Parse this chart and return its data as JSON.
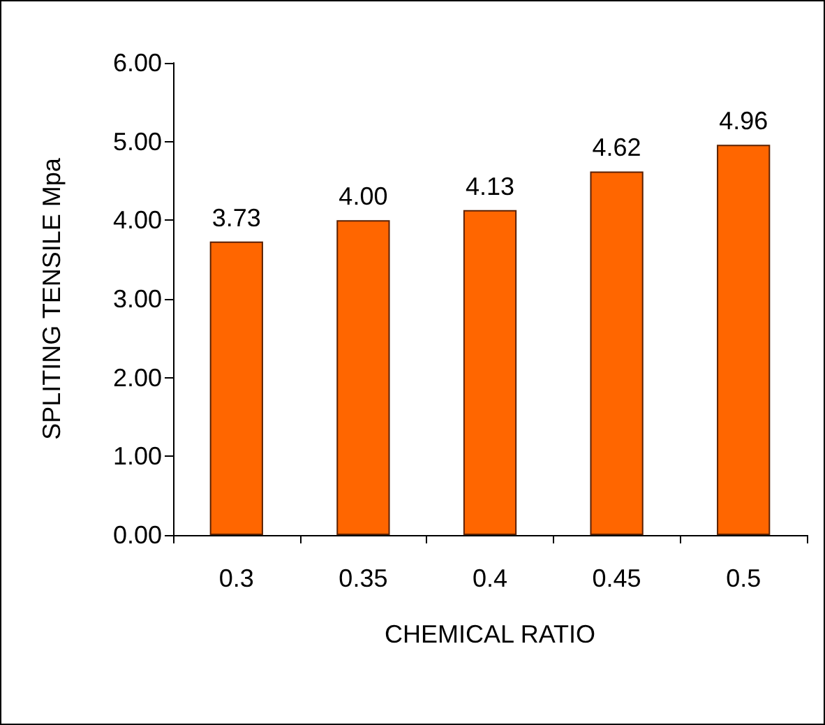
{
  "chart_data": {
    "type": "bar",
    "xlabel": "CHEMICAL RATIO",
    "ylabel": "SPLITING TENSILE Mpa",
    "categories": [
      "0.3",
      "0.35",
      "0.4",
      "0.45",
      "0.5"
    ],
    "values": [
      3.73,
      4.0,
      4.13,
      4.62,
      4.96
    ],
    "value_labels": [
      "3.73",
      "4.00",
      "4.13",
      "4.62",
      "4.96"
    ],
    "color": "#ff6600",
    "ylim": [
      0,
      6
    ],
    "yticks": [
      {
        "value": 0,
        "label": "0.00"
      },
      {
        "value": 1,
        "label": "1.00"
      },
      {
        "value": 2,
        "label": "2.00"
      },
      {
        "value": 3,
        "label": "3.00"
      },
      {
        "value": 4,
        "label": "4.00"
      },
      {
        "value": 5,
        "label": "5.00"
      },
      {
        "value": 6,
        "label": "6.00"
      }
    ],
    "grid": false
  }
}
